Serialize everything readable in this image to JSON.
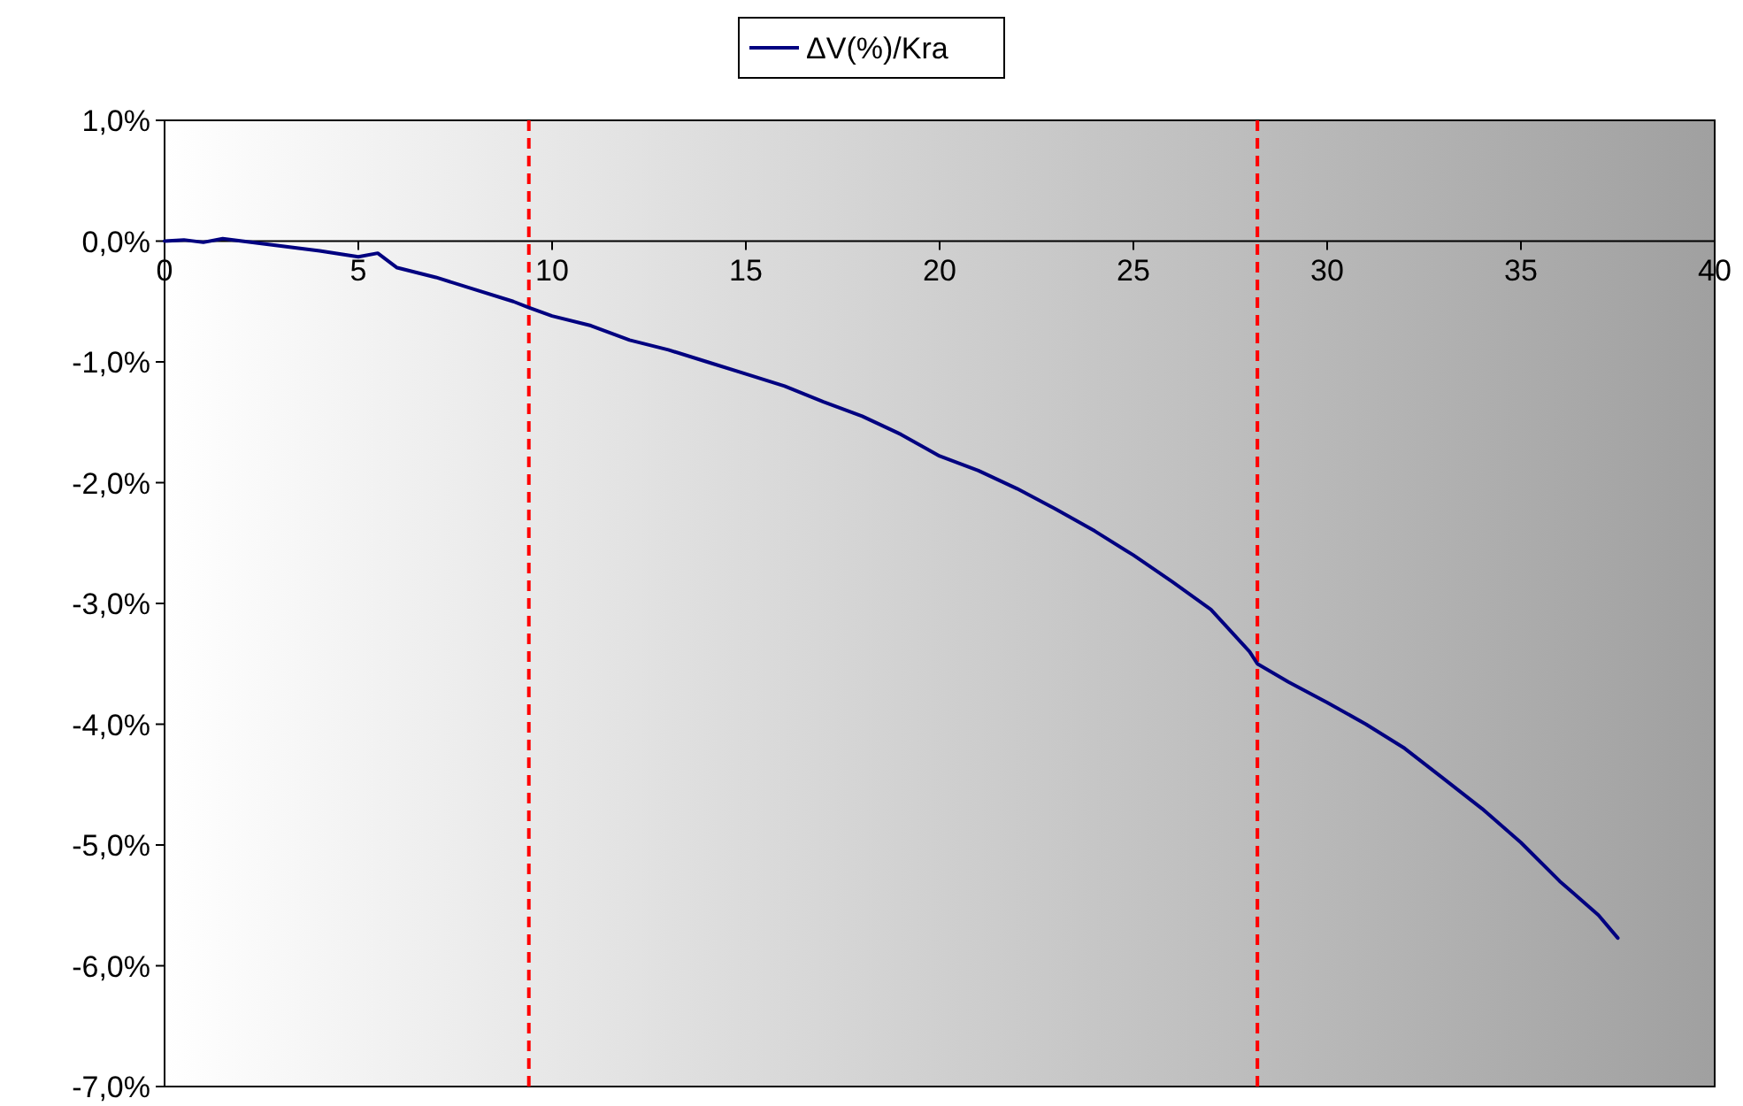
{
  "chart_data": {
    "type": "line",
    "x": [
      0,
      0.5,
      1,
      1.5,
      2,
      2.5,
      3,
      4,
      5,
      5.5,
      6,
      7,
      8,
      9,
      9.4,
      10,
      11,
      12,
      13,
      14,
      15,
      16,
      17,
      18,
      19,
      20,
      21,
      22,
      23,
      24,
      25,
      26,
      27,
      28,
      28.2,
      29,
      30,
      31,
      32,
      33,
      34,
      35,
      36,
      37,
      37.5
    ],
    "series": [
      {
        "name": "ΔV(%)/Kra",
        "color": "#000080",
        "values": [
          0,
          0.01,
          -0.01,
          0.02,
          0,
          -0.02,
          -0.04,
          -0.08,
          -0.13,
          -0.1,
          -0.22,
          -0.3,
          -0.4,
          -0.5,
          -0.55,
          -0.62,
          -0.7,
          -0.82,
          -0.9,
          -1,
          -1.1,
          -1.2,
          -1.33,
          -1.45,
          -1.6,
          -1.78,
          -1.9,
          -2.05,
          -2.22,
          -2.4,
          -2.6,
          -2.82,
          -3.05,
          -3.4,
          -3.5,
          -3.65,
          -3.82,
          -4,
          -4.2,
          -4.45,
          -4.7,
          -4.98,
          -5.3,
          -5.58,
          -5.77
        ]
      }
    ],
    "xlim": [
      0,
      40
    ],
    "xticks": [
      0,
      5,
      10,
      15,
      20,
      25,
      30,
      35,
      40
    ],
    "ylim": [
      -7,
      1
    ],
    "yticks": [
      {
        "value": 1,
        "label": "1,0%"
      },
      {
        "value": 0,
        "label": "0,0%"
      },
      {
        "value": -1,
        "label": "-1,0%"
      },
      {
        "value": -2,
        "label": "-2,0%"
      },
      {
        "value": -3,
        "label": "-3,0%"
      },
      {
        "value": -4,
        "label": "-4,0%"
      },
      {
        "value": -5,
        "label": "-5,0%"
      },
      {
        "value": -6,
        "label": "-6,0%"
      },
      {
        "value": -7,
        "label": "-7,0%"
      }
    ],
    "ref_lines": [
      {
        "axis": "x",
        "value": 9.4,
        "color": "#ff0000",
        "line_style": "dashed"
      },
      {
        "axis": "x",
        "value": 28.2,
        "color": "#ff0000",
        "line_style": "dashed"
      }
    ],
    "legend": "top",
    "grid": false,
    "marker": "none",
    "line_style": "solid"
  }
}
